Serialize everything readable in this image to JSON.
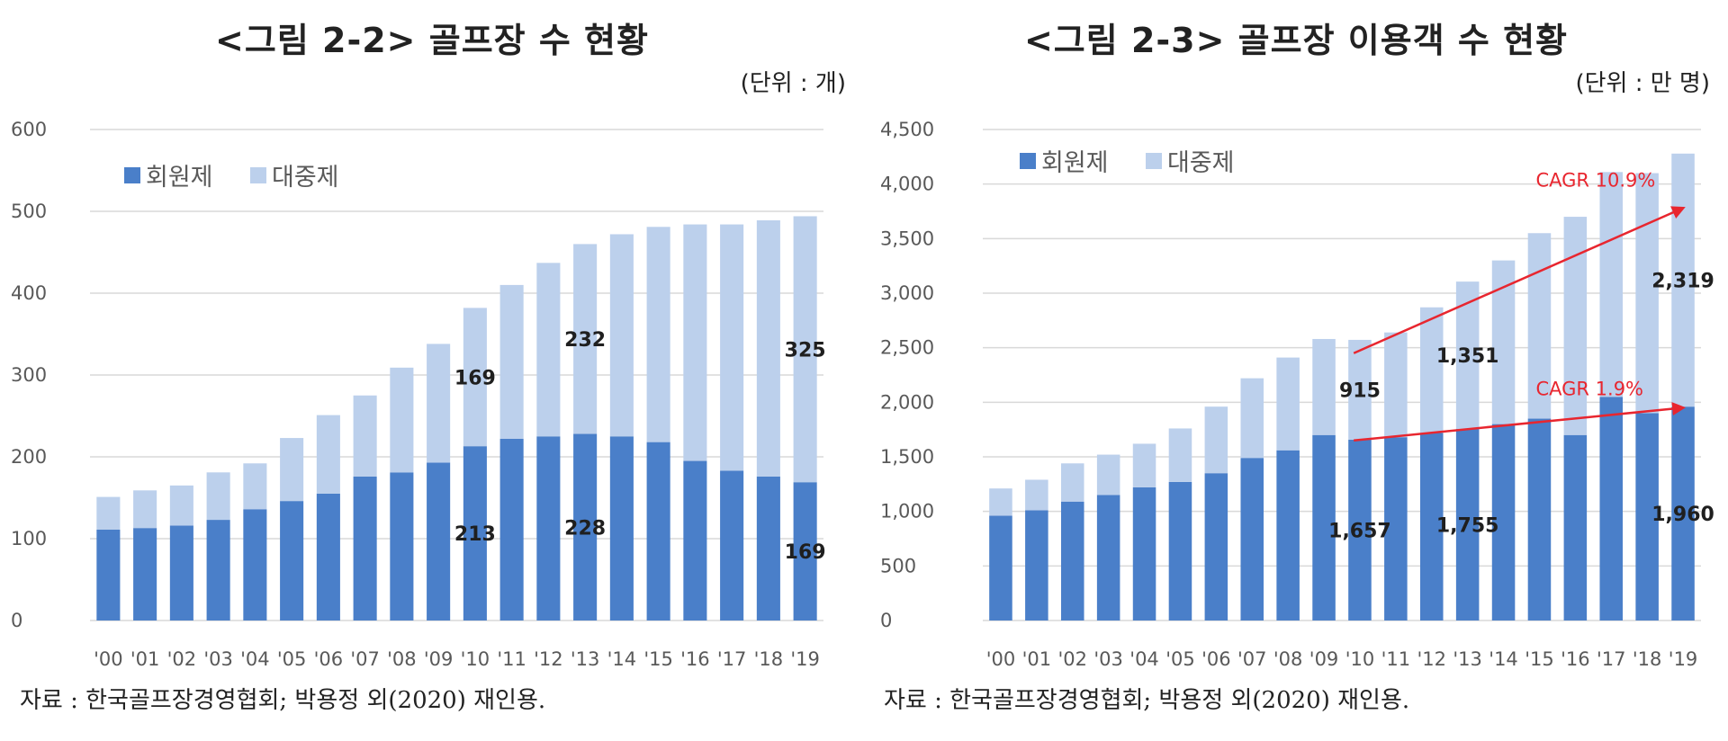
{
  "left": {
    "title": "<그림 2-2> 골프장 수 현황",
    "unit": "(단위 : 개)",
    "source": "자료 : 한국골프장경영협회; 박용정 외(2020) 재인용.",
    "chart_data": {
      "type": "bar",
      "stacked": true,
      "categories": [
        "'00",
        "'01",
        "'02",
        "'03",
        "'04",
        "'05",
        "'06",
        "'07",
        "'08",
        "'09",
        "'10",
        "'11",
        "'12",
        "'13",
        "'14",
        "'15",
        "'16",
        "'17",
        "'18",
        "'19"
      ],
      "series": [
        {
          "name": "회원제",
          "color": "#4a7fc9",
          "values": [
            111,
            113,
            116,
            123,
            136,
            146,
            155,
            176,
            181,
            193,
            213,
            222,
            225,
            228,
            225,
            218,
            195,
            183,
            176,
            169
          ]
        },
        {
          "name": "대중제",
          "color": "#bcd0ec",
          "values": [
            40,
            46,
            49,
            58,
            56,
            77,
            96,
            99,
            128,
            145,
            169,
            188,
            212,
            232,
            247,
            263,
            289,
            301,
            313,
            325
          ]
        }
      ],
      "ylim": [
        0,
        600
      ],
      "yticks": [
        "0",
        "100",
        "200",
        "300",
        "400",
        "500",
        "600"
      ],
      "legend_position": "top-left",
      "grid": true,
      "data_labels": [
        {
          "series": 0,
          "index": 10,
          "text": "213"
        },
        {
          "series": 1,
          "index": 10,
          "text": "169"
        },
        {
          "series": 0,
          "index": 13,
          "text": "228"
        },
        {
          "series": 1,
          "index": 13,
          "text": "232"
        },
        {
          "series": 0,
          "index": 19,
          "text": "169"
        },
        {
          "series": 1,
          "index": 19,
          "text": "325"
        }
      ]
    }
  },
  "right": {
    "title": "<그림 2-3> 골프장 이용객 수 현황",
    "unit": "(단위 : 만 명)",
    "source": "자료 : 한국골프장경영협회; 박용정 외(2020) 재인용.",
    "chart_data": {
      "type": "bar",
      "stacked": true,
      "categories": [
        "'00",
        "'01",
        "'02",
        "'03",
        "'04",
        "'05",
        "'06",
        "'07",
        "'08",
        "'09",
        "'10",
        "'11",
        "'12",
        "'13",
        "'14",
        "'15",
        "'16",
        "'17",
        "'18",
        "'19"
      ],
      "series": [
        {
          "name": "회원제",
          "color": "#4a7fc9",
          "values": [
            960,
            1010,
            1090,
            1150,
            1220,
            1270,
            1350,
            1490,
            1560,
            1700,
            1657,
            1680,
            1720,
            1755,
            1800,
            1850,
            1700,
            2050,
            1900,
            1960
          ]
        },
        {
          "name": "대중제",
          "color": "#bcd0ec",
          "values": [
            250,
            280,
            350,
            370,
            400,
            490,
            610,
            730,
            850,
            880,
            915,
            960,
            1150,
            1351,
            1500,
            1700,
            2000,
            2060,
            2200,
            2319
          ]
        }
      ],
      "ylim": [
        0,
        4500
      ],
      "yticks": [
        "0",
        "500",
        "1,000",
        "1,500",
        "2,000",
        "2,500",
        "3,000",
        "3,500",
        "4,000",
        "4,500"
      ],
      "legend_position": "top-left",
      "grid": true,
      "data_labels": [
        {
          "series": 0,
          "index": 10,
          "text": "1,657"
        },
        {
          "series": 1,
          "index": 10,
          "text": "915"
        },
        {
          "series": 0,
          "index": 13,
          "text": "1,755"
        },
        {
          "series": 1,
          "index": 13,
          "text": "1,351"
        },
        {
          "series": 0,
          "index": 19,
          "text": "1,960"
        },
        {
          "series": 1,
          "index": 19,
          "text": "2,319"
        }
      ],
      "annotations": [
        {
          "text": "CAGR 10.9%",
          "color": "#e8262f",
          "from": {
            "index": 10,
            "value": 2450
          },
          "to": {
            "index": 19,
            "value": 3780
          }
        },
        {
          "text": "CAGR 1.9%",
          "color": "#e8262f",
          "from": {
            "index": 10,
            "value": 1650
          },
          "to": {
            "index": 19,
            "value": 1950
          }
        }
      ]
    }
  }
}
